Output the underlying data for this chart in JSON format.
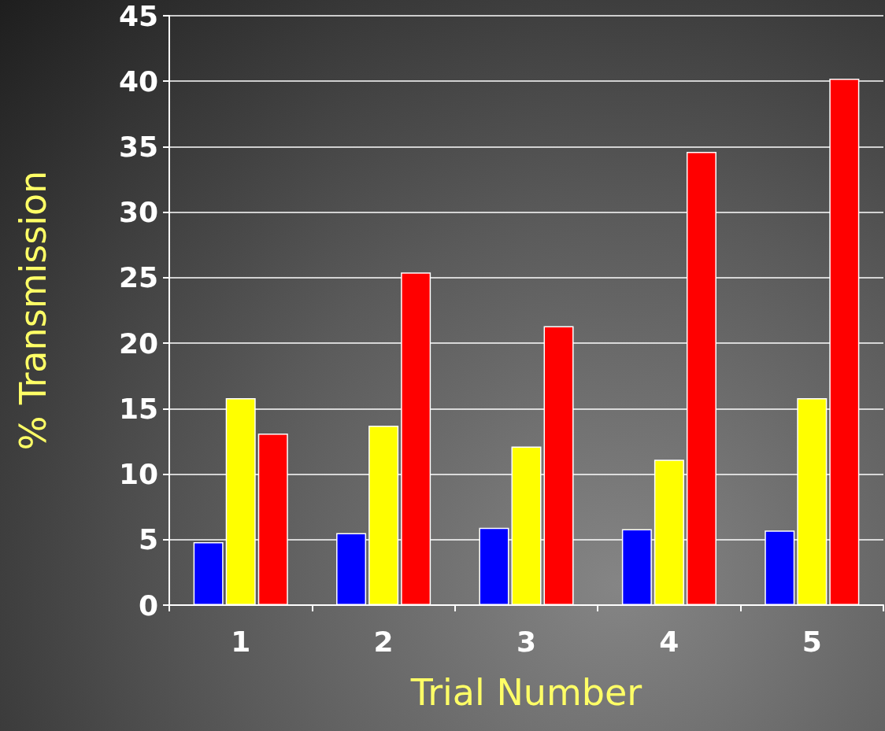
{
  "chart_data": {
    "type": "bar",
    "xlabel": "Trial Number",
    "ylabel": "% Transmission",
    "categories": [
      "1",
      "2",
      "3",
      "4",
      "5"
    ],
    "series": [
      {
        "color": "#0000ff",
        "values": [
          4.8,
          5.5,
          5.9,
          5.8,
          5.7
        ]
      },
      {
        "color": "#ffff00",
        "values": [
          15.8,
          13.7,
          12.1,
          11.1,
          15.8
        ]
      },
      {
        "color": "#ff0000",
        "values": [
          13.1,
          25.4,
          21.3,
          34.6,
          40.2
        ]
      }
    ],
    "ylim": [
      0,
      45
    ],
    "yticks": [
      0,
      5,
      10,
      15,
      20,
      25,
      30,
      35,
      40,
      45
    ],
    "grid": "y"
  }
}
